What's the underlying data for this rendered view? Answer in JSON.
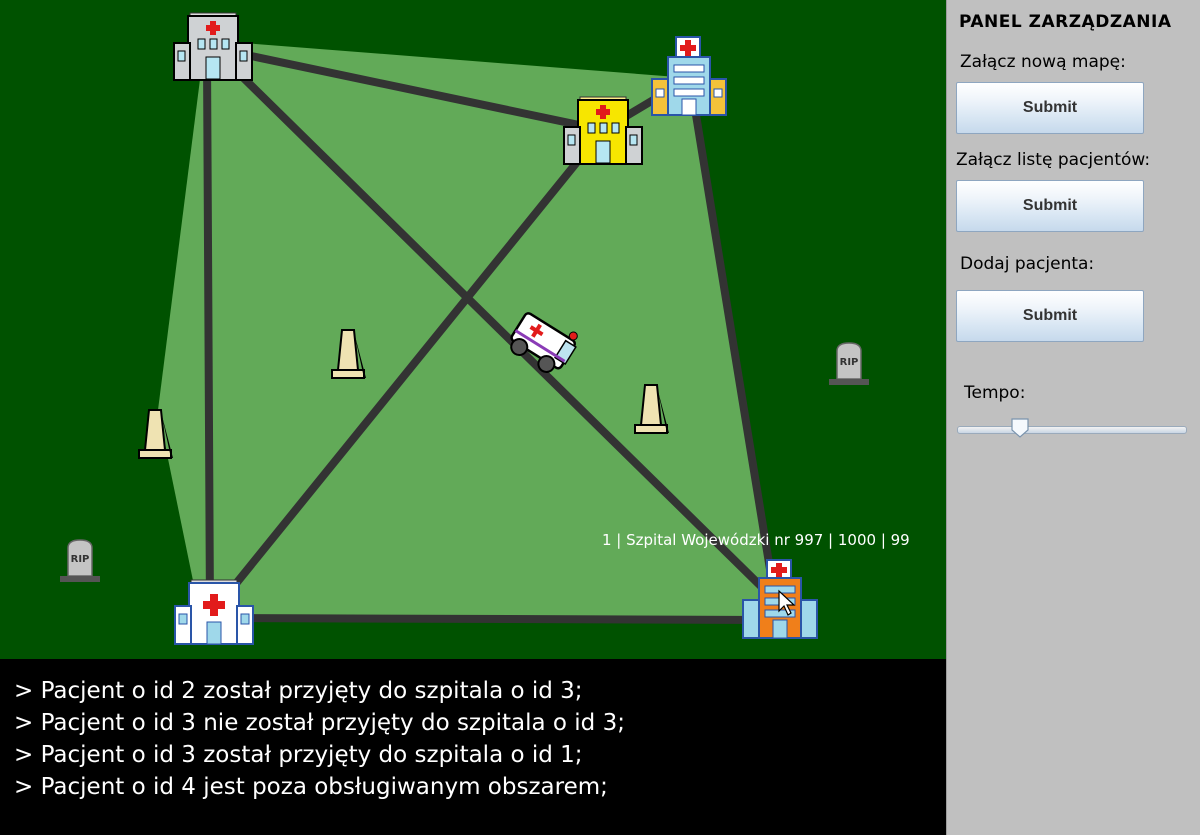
{
  "panel": {
    "title": "PANEL ZARZĄDZANIA",
    "attach_map_label": "Załącz nową mapę:",
    "attach_map_button": "Submit",
    "attach_patients_label": "Załącz listę pacjentów:",
    "attach_patients_button": "Submit",
    "add_patient_label": "Dodaj pacjenta:",
    "add_patient_button": "Submit",
    "tempo_label": "Tempo:",
    "tempo_value_percent": 25
  },
  "map": {
    "hospital_tooltip": "1 | Szpital Wojewódzki nr 997 | 1000 | 99",
    "grave_text": "RIP"
  },
  "console": {
    "lines": [
      "> Pacjent o id 2 został przyjęty do szpitala o id 3;",
      "> Pacjent o id 3 nie został przyjęty do szpitala o id 3;",
      "> Pacjent o id 3 został przyjęty do szpitala o id 1;",
      "> Pacjent o id 4 jest poza obsługiwanym obszarem;"
    ]
  },
  "colors": {
    "map_bg": "#005200",
    "area": "#62aa58",
    "road": "#333333",
    "console_bg": "#000000",
    "panel_bg": "#c0c0c0"
  }
}
